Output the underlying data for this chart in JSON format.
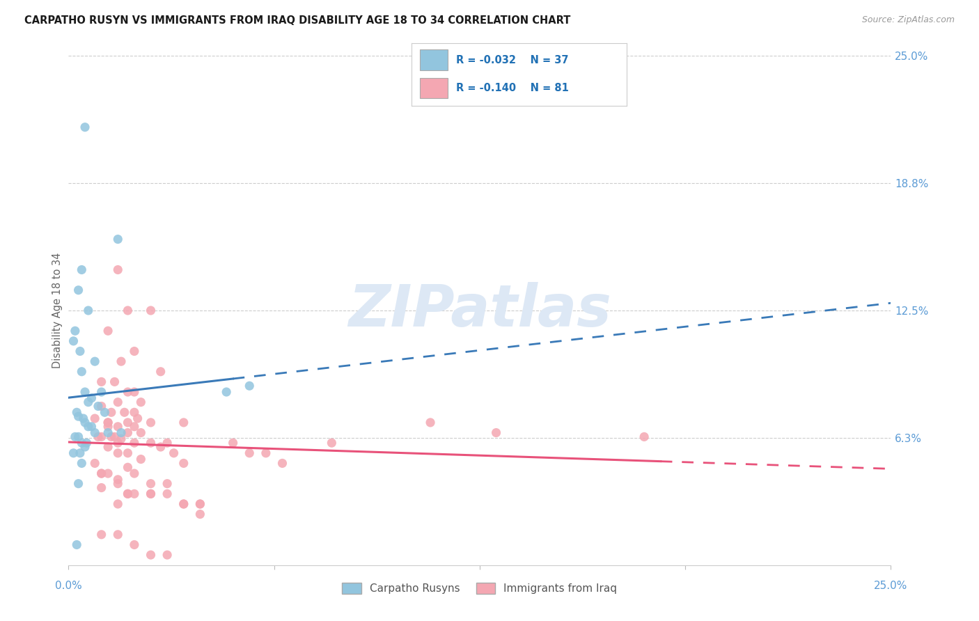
{
  "title": "CARPATHO RUSYN VS IMMIGRANTS FROM IRAQ DISABILITY AGE 18 TO 34 CORRELATION CHART",
  "source": "Source: ZipAtlas.com",
  "ylabel": "Disability Age 18 to 34",
  "right_ytick_vals": [
    6.25,
    12.5,
    18.75,
    25.0
  ],
  "right_ytick_labels": [
    "6.3%",
    "12.5%",
    "18.8%",
    "25.0%"
  ],
  "xmin": 0.0,
  "xmax": 25.0,
  "ymin": 0.0,
  "ymax": 25.0,
  "blue_R": -0.032,
  "blue_N": 37,
  "pink_R": -0.14,
  "pink_N": 81,
  "blue_color": "#92c5de",
  "pink_color": "#f4a7b2",
  "blue_line_color": "#3a7ab8",
  "pink_line_color": "#e8527a",
  "blue_line_solid_end": 5.0,
  "pink_line_solid_end": 18.0,
  "watermark_text": "ZIPatlas",
  "legend_label_blue": "Carpatho Rusyns",
  "legend_label_pink": "Immigrants from Iraq",
  "blue_scatter_x": [
    0.5,
    1.5,
    0.4,
    0.3,
    0.6,
    0.2,
    0.15,
    0.35,
    0.8,
    0.4,
    0.5,
    1.0,
    0.7,
    0.6,
    0.9,
    1.1,
    0.25,
    0.3,
    0.45,
    0.5,
    0.6,
    0.7,
    0.8,
    1.2,
    1.6,
    0.3,
    0.2,
    0.4,
    0.55,
    0.5,
    0.15,
    0.35,
    4.8,
    0.4,
    0.3,
    5.5,
    0.25
  ],
  "blue_scatter_y": [
    21.5,
    16.0,
    14.5,
    13.5,
    12.5,
    11.5,
    11.0,
    10.5,
    10.0,
    9.5,
    8.5,
    8.5,
    8.2,
    8.0,
    7.8,
    7.5,
    7.5,
    7.3,
    7.2,
    7.0,
    6.8,
    6.8,
    6.5,
    6.5,
    6.5,
    6.3,
    6.3,
    6.0,
    6.0,
    5.8,
    5.5,
    5.5,
    8.5,
    5.0,
    4.0,
    8.8,
    1.0
  ],
  "pink_scatter_x": [
    1.5,
    1.8,
    2.5,
    1.2,
    2.0,
    1.6,
    2.8,
    1.0,
    1.4,
    2.0,
    1.8,
    2.2,
    1.5,
    1.0,
    2.0,
    1.3,
    1.7,
    2.1,
    0.8,
    1.2,
    2.5,
    1.8,
    3.5,
    1.2,
    1.5,
    2.0,
    1.8,
    2.2,
    1.0,
    1.3,
    0.9,
    1.4,
    1.6,
    2.0,
    2.5,
    3.0,
    1.5,
    1.2,
    2.8,
    1.8,
    3.2,
    1.5,
    2.2,
    3.5,
    1.8,
    1.0,
    2.0,
    1.5,
    2.5,
    1.0,
    3.0,
    1.8,
    2.5,
    1.5,
    3.5,
    4.0,
    5.5,
    6.5,
    11.0,
    13.0,
    17.5,
    0.8,
    1.0,
    1.2,
    1.5,
    1.8,
    2.0,
    2.5,
    3.0,
    3.5,
    4.0,
    1.0,
    1.5,
    2.0,
    2.5,
    3.0,
    4.0,
    5.0,
    6.0,
    8.0,
    1.2
  ],
  "pink_scatter_y": [
    14.5,
    12.5,
    12.5,
    11.5,
    10.5,
    10.0,
    9.5,
    9.0,
    9.0,
    8.5,
    8.5,
    8.0,
    8.0,
    7.8,
    7.5,
    7.5,
    7.5,
    7.2,
    7.2,
    7.0,
    7.0,
    7.0,
    7.0,
    6.8,
    6.8,
    6.8,
    6.5,
    6.5,
    6.3,
    6.3,
    6.3,
    6.3,
    6.2,
    6.0,
    6.0,
    6.0,
    6.0,
    5.8,
    5.8,
    5.5,
    5.5,
    5.5,
    5.2,
    5.0,
    4.8,
    4.5,
    4.5,
    4.2,
    4.0,
    3.8,
    3.5,
    3.5,
    3.5,
    3.0,
    3.0,
    2.5,
    5.5,
    5.0,
    7.0,
    6.5,
    6.3,
    5.0,
    4.5,
    4.5,
    4.0,
    3.5,
    3.5,
    3.5,
    4.0,
    3.0,
    3.0,
    1.5,
    1.5,
    1.0,
    0.5,
    0.5,
    3.0,
    6.0,
    5.5,
    6.0,
    7.0
  ]
}
